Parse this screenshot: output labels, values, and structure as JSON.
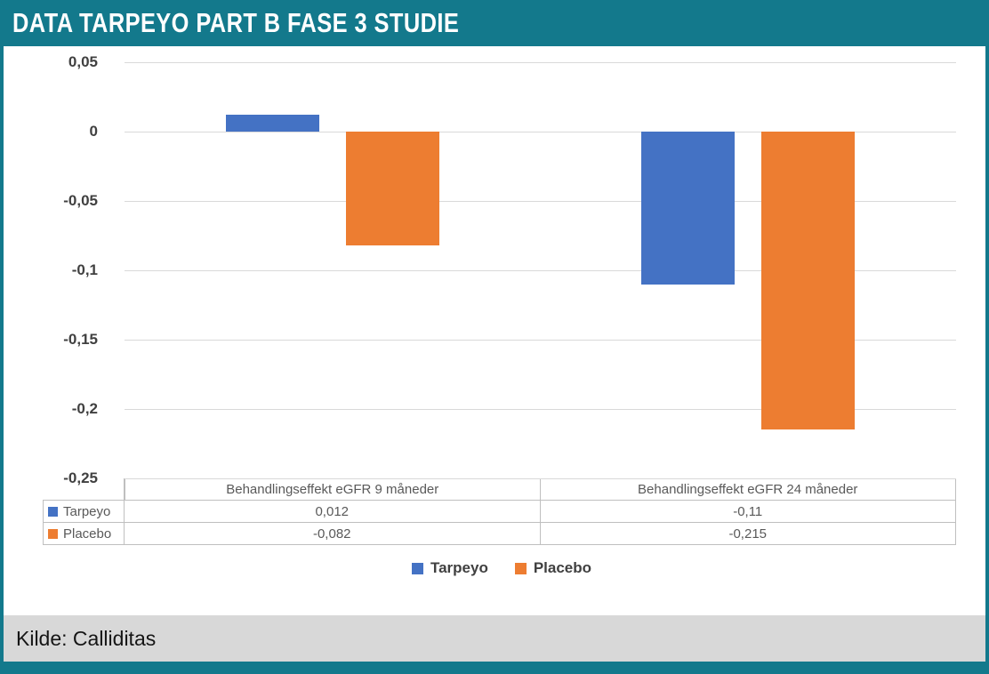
{
  "page": {
    "title": "DATA TARPEYO PART B FASE 3 STUDIE",
    "footer": "Kilde: Calliditas",
    "colors": {
      "accent": "#13798c",
      "footer_bg": "#d8d8d8",
      "grid": "#d9d9d9",
      "table_border": "#bfbfbf"
    }
  },
  "chart_data": {
    "type": "bar",
    "title": "",
    "categories": [
      "Behandlingseffekt eGFR 9 måneder",
      "Behandlingseffekt eGFR 24 måneder"
    ],
    "series": [
      {
        "name": "Tarpeyo",
        "color": "#4472c4",
        "values": [
          0.012,
          -0.11
        ],
        "labels": [
          "0,012",
          "-0,11"
        ]
      },
      {
        "name": "Placebo",
        "color": "#ed7d31",
        "values": [
          -0.082,
          -0.215
        ],
        "labels": [
          "-0,082",
          "-0,215"
        ]
      }
    ],
    "ylim": [
      -0.25,
      0.05
    ],
    "ytick_step": 0.05,
    "yticks": [
      "0,05",
      "0",
      "-0,05",
      "-0,1",
      "-0,15",
      "-0,2",
      "-0,25"
    ],
    "grid": true,
    "legend_position": "bottom",
    "data_table_shown": true
  }
}
